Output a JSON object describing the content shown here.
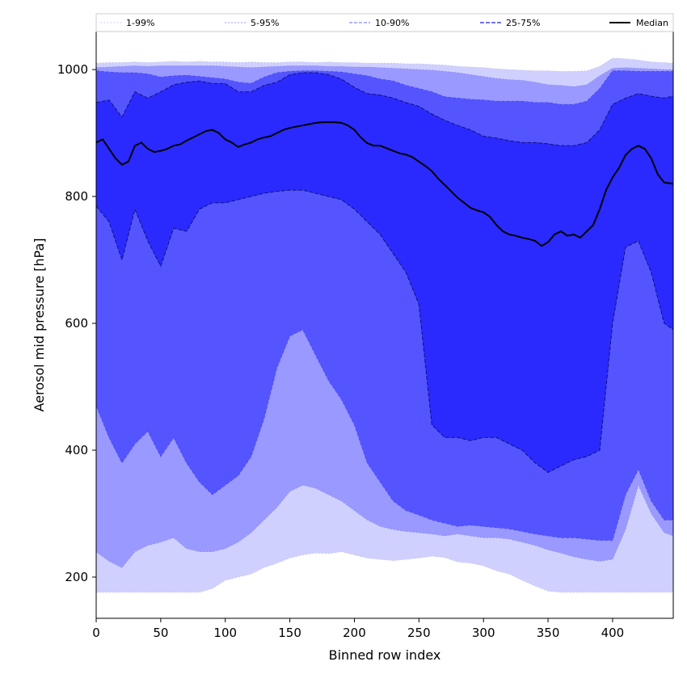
{
  "chart_data": {
    "type": "area",
    "title": "",
    "xlabel": "Binned row index",
    "ylabel": "Aerosol mid pressure [hPa]",
    "xlim": [
      0,
      447
    ],
    "ylim": [
      135,
      1060
    ],
    "x_ticks": [
      0,
      50,
      100,
      150,
      200,
      250,
      300,
      350,
      400
    ],
    "y_ticks": [
      200,
      400,
      600,
      800,
      1000
    ],
    "grid": false,
    "legend_position": "top",
    "colors": {
      "band_1_99": "#d0d0ff",
      "band_5_95": "#9999ff",
      "band_10_90": "#5555ff",
      "band_25_75": "#2a2aff",
      "median": "#000000"
    },
    "x": [
      0,
      10,
      20,
      30,
      40,
      50,
      60,
      70,
      80,
      90,
      100,
      110,
      120,
      130,
      140,
      150,
      160,
      170,
      180,
      190,
      200,
      210,
      220,
      230,
      240,
      250,
      260,
      270,
      280,
      290,
      300,
      310,
      320,
      330,
      340,
      350,
      360,
      370,
      380,
      390,
      400,
      410,
      420,
      430,
      440,
      447
    ],
    "series": [
      {
        "name": "1-99%",
        "lower": [
          176,
          176,
          176,
          176,
          176,
          176,
          176,
          176,
          176,
          182,
          195,
          200,
          205,
          215,
          222,
          230,
          235,
          238,
          237,
          240,
          235,
          230,
          228,
          226,
          228,
          230,
          233,
          231,
          224,
          222,
          218,
          210,
          205,
          195,
          186,
          178,
          176,
          176,
          176,
          176,
          176,
          176,
          176,
          176,
          176,
          176
        ],
        "upper": [
          1010,
          1011,
          1011,
          1012,
          1011,
          1012,
          1013,
          1012,
          1013,
          1012,
          1012,
          1011,
          1012,
          1011,
          1011,
          1012,
          1012,
          1011,
          1012,
          1011,
          1011,
          1010,
          1010,
          1010,
          1009,
          1009,
          1008,
          1007,
          1005,
          1004,
          1003,
          1001,
          1000,
          999,
          998,
          998,
          997,
          997,
          998,
          1005,
          1018,
          1017,
          1015,
          1012,
          1011,
          1010
        ]
      },
      {
        "name": "5-95%",
        "lower": [
          240,
          225,
          215,
          240,
          250,
          255,
          262,
          245,
          240,
          240,
          245,
          255,
          270,
          290,
          310,
          335,
          345,
          340,
          330,
          320,
          305,
          290,
          280,
          275,
          272,
          270,
          268,
          265,
          268,
          265,
          262,
          262,
          260,
          255,
          250,
          243,
          238,
          232,
          228,
          225,
          228,
          275,
          345,
          300,
          270,
          265
        ],
        "upper": [
          1003,
          1004,
          1005,
          1006,
          1005,
          1006,
          1006,
          1006,
          1006,
          1006,
          1005,
          1004,
          1003,
          1004,
          1005,
          1006,
          1006,
          1006,
          1005,
          1005,
          1004,
          1004,
          1003,
          1002,
          1001,
          1000,
          999,
          997,
          995,
          992,
          989,
          986,
          984,
          983,
          980,
          976,
          975,
          973,
          976,
          990,
          1002,
          1003,
          1002,
          1001,
          1000,
          1000
        ]
      },
      {
        "name": "10-90%",
        "lower": [
          470,
          420,
          380,
          410,
          430,
          390,
          420,
          380,
          350,
          330,
          345,
          360,
          390,
          450,
          530,
          580,
          590,
          550,
          510,
          480,
          440,
          380,
          350,
          320,
          305,
          298,
          290,
          285,
          280,
          282,
          280,
          278,
          276,
          272,
          268,
          265,
          262,
          262,
          260,
          258,
          258,
          330,
          370,
          320,
          290,
          290
        ],
        "upper": [
          998,
          996,
          995,
          995,
          993,
          988,
          990,
          991,
          989,
          987,
          985,
          980,
          978,
          988,
          995,
          997,
          998,
          998,
          997,
          996,
          993,
          990,
          985,
          982,
          975,
          970,
          965,
          957,
          955,
          953,
          952,
          950,
          950,
          950,
          948,
          948,
          945,
          945,
          950,
          970,
          998,
          998,
          997,
          997,
          997,
          997
        ]
      },
      {
        "name": "25-75%",
        "lower": [
          785,
          760,
          700,
          780,
          730,
          690,
          750,
          745,
          780,
          790,
          790,
          795,
          800,
          805,
          808,
          810,
          810,
          805,
          800,
          795,
          780,
          760,
          740,
          710,
          680,
          630,
          440,
          420,
          420,
          415,
          420,
          420,
          410,
          400,
          380,
          365,
          375,
          385,
          390,
          400,
          600,
          720,
          730,
          680,
          600,
          590
        ],
        "upper": [
          948,
          952,
          925,
          965,
          955,
          965,
          976,
          980,
          982,
          978,
          978,
          965,
          965,
          975,
          980,
          992,
          995,
          995,
          992,
          985,
          972,
          962,
          960,
          955,
          948,
          942,
          930,
          920,
          912,
          905,
          895,
          892,
          888,
          885,
          885,
          883,
          880,
          880,
          885,
          905,
          945,
          955,
          962,
          958,
          955,
          958
        ]
      }
    ],
    "median": {
      "name": "Median",
      "x": [
        0,
        5,
        10,
        15,
        20,
        25,
        30,
        35,
        40,
        45,
        50,
        55,
        60,
        65,
        70,
        75,
        80,
        85,
        90,
        95,
        100,
        105,
        110,
        115,
        120,
        125,
        130,
        135,
        140,
        145,
        150,
        155,
        160,
        165,
        170,
        175,
        180,
        185,
        190,
        195,
        200,
        205,
        210,
        215,
        220,
        225,
        230,
        235,
        240,
        245,
        250,
        255,
        260,
        265,
        270,
        275,
        280,
        285,
        290,
        295,
        300,
        305,
        310,
        315,
        320,
        325,
        330,
        335,
        340,
        345,
        350,
        355,
        360,
        365,
        370,
        375,
        380,
        385,
        390,
        395,
        400,
        405,
        410,
        415,
        420,
        425,
        430,
        435,
        440,
        447
      ],
      "y": [
        885,
        890,
        875,
        860,
        850,
        855,
        880,
        885,
        875,
        870,
        872,
        875,
        880,
        882,
        888,
        893,
        898,
        903,
        905,
        900,
        890,
        885,
        878,
        882,
        885,
        890,
        893,
        895,
        900,
        905,
        908,
        910,
        912,
        914,
        916,
        917,
        917,
        917,
        916,
        912,
        905,
        893,
        884,
        880,
        880,
        876,
        872,
        868,
        866,
        862,
        855,
        848,
        840,
        828,
        818,
        808,
        798,
        790,
        782,
        778,
        775,
        768,
        755,
        745,
        740,
        738,
        735,
        733,
        730,
        722,
        728,
        740,
        745,
        738,
        740,
        735,
        745,
        755,
        780,
        810,
        830,
        845,
        865,
        875,
        880,
        875,
        860,
        835,
        822,
        820
      ]
    }
  }
}
